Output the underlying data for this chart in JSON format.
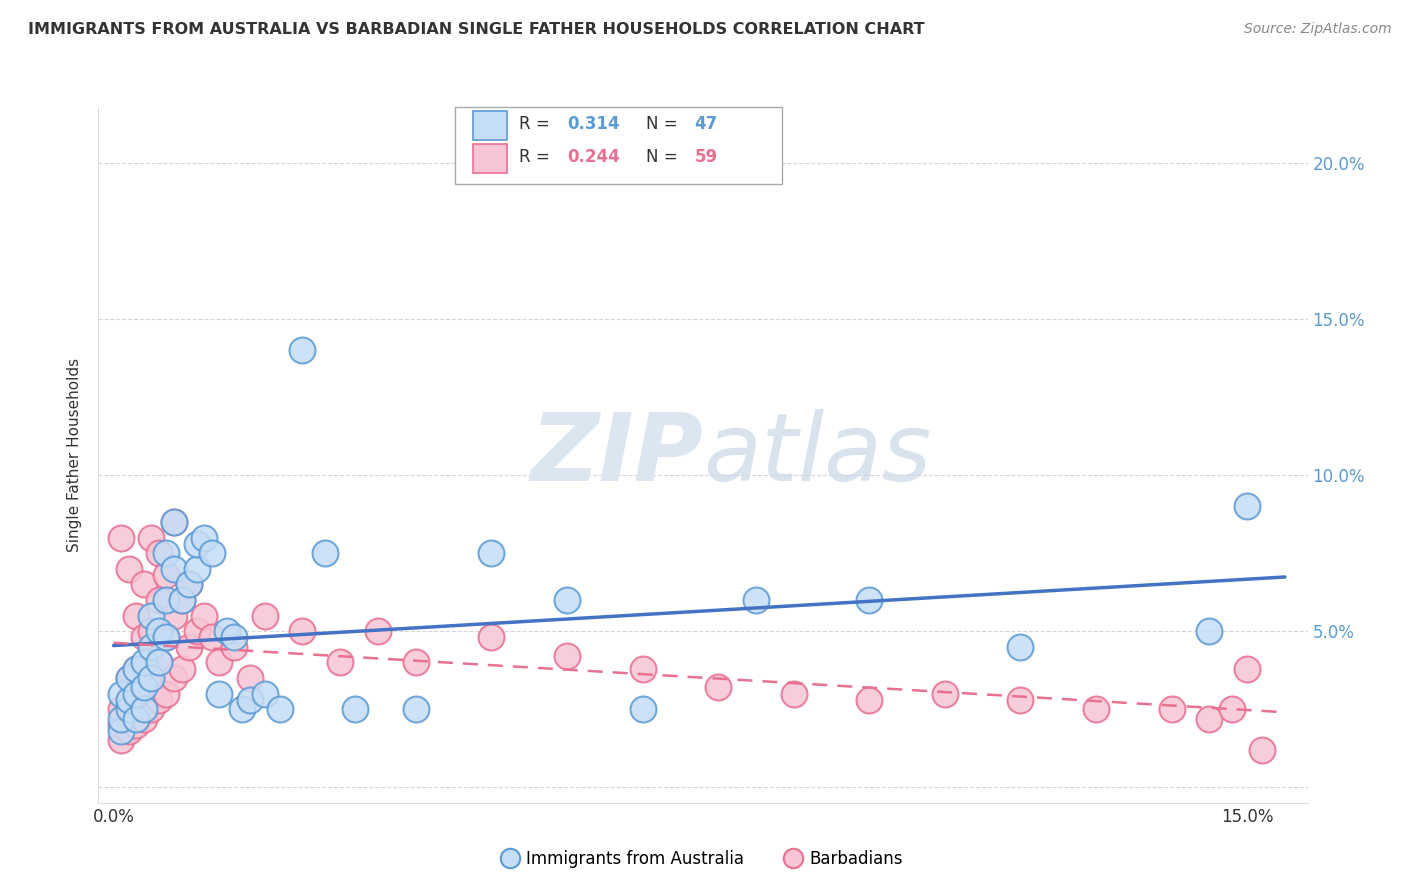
{
  "title": "IMMIGRANTS FROM AUSTRALIA VS BARBADIAN SINGLE FATHER HOUSEHOLDS CORRELATION CHART",
  "source": "Source: ZipAtlas.com",
  "ylabel": "Single Father Households",
  "xlim": [
    -0.002,
    0.158
  ],
  "ylim": [
    -0.005,
    0.218
  ],
  "xticks": [
    0.0,
    0.05,
    0.1,
    0.15
  ],
  "xticklabels": [
    "0.0%",
    "",
    "",
    "15.0%"
  ],
  "yticks": [
    0.0,
    0.05,
    0.1,
    0.15,
    0.2
  ],
  "yticklabels_right": [
    "",
    "5.0%",
    "10.0%",
    "15.0%",
    "20.0%"
  ],
  "legend_r_blue": "R = ",
  "legend_r_blue_val": "0.314",
  "legend_n_blue": "N = ",
  "legend_n_blue_val": "47",
  "legend_r_pink": "R = ",
  "legend_r_pink_val": "0.244",
  "legend_n_pink": "N = ",
  "legend_n_pink_val": "59",
  "legend_labels": [
    "Immigrants from Australia",
    "Barbadians"
  ],
  "blue_face": "#c5ddf5",
  "blue_edge": "#5b9bd5",
  "pink_face": "#f7c5d5",
  "pink_edge": "#e87090",
  "blue_line": "#4472c4",
  "pink_line": "#e87090",
  "text_color": "#333333",
  "tick_color": "#5b9bd5",
  "grid_color": "#cccccc",
  "watermark_color": "#dce6f0",
  "blue_scatter_x": [
    0.001,
    0.001,
    0.001,
    0.002,
    0.002,
    0.002,
    0.003,
    0.003,
    0.003,
    0.004,
    0.004,
    0.004,
    0.005,
    0.005,
    0.005,
    0.006,
    0.006,
    0.007,
    0.007,
    0.007,
    0.008,
    0.008,
    0.009,
    0.01,
    0.011,
    0.011,
    0.012,
    0.013,
    0.014,
    0.015,
    0.016,
    0.017,
    0.018,
    0.02,
    0.022,
    0.025,
    0.028,
    0.032,
    0.04,
    0.05,
    0.06,
    0.07,
    0.085,
    0.1,
    0.12,
    0.145,
    0.15
  ],
  "blue_scatter_y": [
    0.018,
    0.022,
    0.03,
    0.025,
    0.028,
    0.035,
    0.022,
    0.03,
    0.038,
    0.025,
    0.032,
    0.04,
    0.035,
    0.045,
    0.055,
    0.04,
    0.05,
    0.048,
    0.06,
    0.075,
    0.07,
    0.085,
    0.06,
    0.065,
    0.07,
    0.078,
    0.08,
    0.075,
    0.03,
    0.05,
    0.048,
    0.025,
    0.028,
    0.03,
    0.025,
    0.14,
    0.075,
    0.025,
    0.025,
    0.075,
    0.06,
    0.025,
    0.06,
    0.06,
    0.045,
    0.05,
    0.09
  ],
  "pink_scatter_x": [
    0.001,
    0.001,
    0.001,
    0.001,
    0.002,
    0.002,
    0.002,
    0.002,
    0.003,
    0.003,
    0.003,
    0.003,
    0.004,
    0.004,
    0.004,
    0.004,
    0.005,
    0.005,
    0.005,
    0.005,
    0.006,
    0.006,
    0.006,
    0.006,
    0.007,
    0.007,
    0.007,
    0.008,
    0.008,
    0.008,
    0.009,
    0.009,
    0.01,
    0.01,
    0.011,
    0.012,
    0.013,
    0.014,
    0.016,
    0.018,
    0.02,
    0.025,
    0.03,
    0.035,
    0.04,
    0.05,
    0.06,
    0.07,
    0.08,
    0.09,
    0.1,
    0.11,
    0.12,
    0.13,
    0.14,
    0.145,
    0.148,
    0.15,
    0.152
  ],
  "pink_scatter_y": [
    0.015,
    0.02,
    0.025,
    0.08,
    0.018,
    0.028,
    0.035,
    0.07,
    0.02,
    0.028,
    0.038,
    0.055,
    0.022,
    0.032,
    0.048,
    0.065,
    0.025,
    0.035,
    0.05,
    0.08,
    0.028,
    0.04,
    0.06,
    0.075,
    0.03,
    0.048,
    0.068,
    0.035,
    0.055,
    0.085,
    0.038,
    0.06,
    0.045,
    0.065,
    0.05,
    0.055,
    0.048,
    0.04,
    0.045,
    0.035,
    0.055,
    0.05,
    0.04,
    0.05,
    0.04,
    0.048,
    0.042,
    0.038,
    0.032,
    0.03,
    0.028,
    0.03,
    0.028,
    0.025,
    0.025,
    0.022,
    0.025,
    0.038,
    0.012
  ]
}
